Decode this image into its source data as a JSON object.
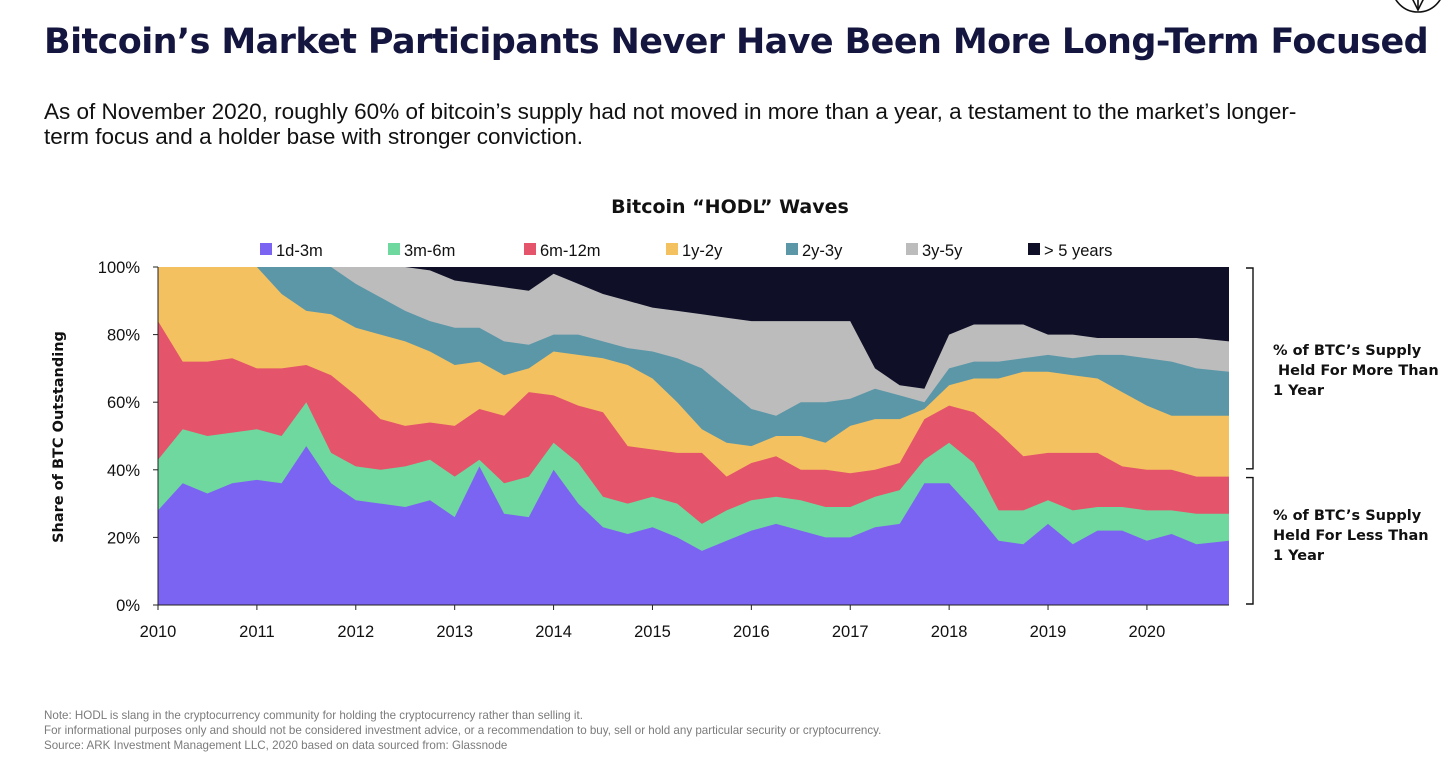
{
  "headline": "Bitcoin’s Market Participants Never Have Been More Long-Term Focused",
  "subtitle": "As of November 2020, roughly 60% of bitcoin’s supply had not moved in more than a year, a testament to the market’s longer-term focus and a holder base with stronger conviction.",
  "colors": {
    "1d-3m": "#7b64f2",
    "3m-6m": "#6fd89e",
    "6m-12m": "#e4546a",
    "1y-2y": "#f4c161",
    "2y-3y": "#5c97a8",
    "3y-5y": "#bcbcbc",
    "> 5 years": "#0f0f27",
    "text": "#111111",
    "footnote": "#7b7b7b"
  },
  "chart_data": {
    "type": "area",
    "stacked": true,
    "title": "Bitcoin “HODL” Waves",
    "ylabel": "Share of BTC Outstanding",
    "xlabel": "",
    "xlim": [
      2010.0,
      2020.83
    ],
    "ylim": [
      0,
      100
    ],
    "x_ticks": [
      "2010",
      "2011",
      "2012",
      "2013",
      "2014",
      "2015",
      "2016",
      "2017",
      "2018",
      "2019",
      "2020"
    ],
    "y_ticks": [
      "0%",
      "20%",
      "40%",
      "60%",
      "80%",
      "100%"
    ],
    "legend": [
      "1d-3m",
      "3m-6m",
      "6m-12m",
      "1y-2y",
      "2y-3y",
      "3y-5y",
      "> 5 years"
    ],
    "legend_position": "top",
    "x": [
      2010.0,
      2010.25,
      2010.5,
      2010.75,
      2011.0,
      2011.25,
      2011.5,
      2011.75,
      2012.0,
      2012.25,
      2012.5,
      2012.75,
      2013.0,
      2013.25,
      2013.5,
      2013.75,
      2014.0,
      2014.25,
      2014.5,
      2014.75,
      2015.0,
      2015.25,
      2015.5,
      2015.75,
      2016.0,
      2016.25,
      2016.5,
      2016.75,
      2017.0,
      2017.25,
      2017.5,
      2017.75,
      2018.0,
      2018.25,
      2018.5,
      2018.75,
      2019.0,
      2019.25,
      2019.5,
      2019.75,
      2020.0,
      2020.25,
      2020.5,
      2020.83
    ],
    "cumulative_boundaries": [
      {
        "upper_of": "1d-3m",
        "values": [
          28,
          36,
          33,
          36,
          37,
          36,
          47,
          36,
          31,
          30,
          29,
          31,
          26,
          41,
          27,
          26,
          40,
          30,
          23,
          21,
          23,
          20,
          16,
          19,
          22,
          24,
          22,
          20,
          20,
          23,
          24,
          36,
          36,
          28,
          19,
          18,
          24,
          18,
          22,
          22,
          19,
          21,
          18,
          19
        ]
      },
      {
        "upper_of": "3m-6m",
        "values": [
          43,
          52,
          50,
          51,
          52,
          50,
          60,
          45,
          41,
          40,
          41,
          43,
          38,
          43,
          36,
          38,
          48,
          42,
          32,
          30,
          32,
          30,
          24,
          28,
          31,
          32,
          31,
          29,
          29,
          32,
          34,
          43,
          48,
          42,
          28,
          28,
          31,
          28,
          29,
          29,
          28,
          28,
          27,
          27
        ]
      },
      {
        "upper_of": "6m-12m",
        "values": [
          84,
          72,
          72,
          73,
          70,
          70,
          71,
          68,
          62,
          55,
          53,
          54,
          53,
          58,
          56,
          63,
          62,
          59,
          57,
          47,
          46,
          45,
          45,
          38,
          42,
          44,
          40,
          40,
          39,
          40,
          42,
          55,
          59,
          57,
          51,
          44,
          45,
          45,
          45,
          41,
          40,
          40,
          38,
          38
        ]
      },
      {
        "upper_of": "1y-2y",
        "values": [
          100,
          100,
          100,
          100,
          100,
          92,
          87,
          86,
          82,
          80,
          78,
          75,
          71,
          72,
          68,
          70,
          75,
          74,
          73,
          71,
          67,
          60,
          52,
          48,
          47,
          50,
          50,
          48,
          53,
          55,
          55,
          58,
          65,
          67,
          67,
          69,
          69,
          68,
          67,
          63,
          59,
          56,
          56,
          56
        ]
      },
      {
        "upper_of": "2y-3y",
        "values": [
          100,
          100,
          100,
          100,
          100,
          100,
          100,
          100,
          95,
          91,
          87,
          84,
          82,
          82,
          78,
          77,
          80,
          80,
          78,
          76,
          75,
          73,
          70,
          64,
          58,
          56,
          60,
          60,
          61,
          64,
          62,
          60,
          70,
          72,
          72,
          73,
          74,
          73,
          74,
          74,
          73,
          72,
          70,
          69
        ]
      },
      {
        "upper_of": "3y-5y",
        "values": [
          100,
          100,
          100,
          100,
          100,
          100,
          100,
          100,
          100,
          100,
          100,
          99,
          96,
          95,
          94,
          93,
          98,
          95,
          92,
          90,
          88,
          87,
          86,
          85,
          84,
          84,
          84,
          84,
          84,
          70,
          65,
          64,
          80,
          83,
          83,
          83,
          80,
          80,
          79,
          79,
          79,
          79,
          79,
          78
        ]
      }
    ],
    "annotations": [
      {
        "range": [
          40,
          100
        ],
        "text": [
          "% of BTC’s Supply",
          " Held For More Than",
          "1 Year"
        ]
      },
      {
        "range": [
          0,
          38
        ],
        "text": [
          "% of BTC’s Supply",
          "Held For Less Than",
          "1 Year"
        ]
      }
    ]
  },
  "footnotes": [
    "Note: HODL is slang in the cryptocurrency community for holding the cryptocurrency rather than selling it.",
    "For informational purposes only and should not be considered investment advice, or a recommendation to buy, sell or hold any particular security or cryptocurrency.",
    "Source: ARK Investment Management LLC, 2020 based on data sourced from: Glassnode"
  ]
}
